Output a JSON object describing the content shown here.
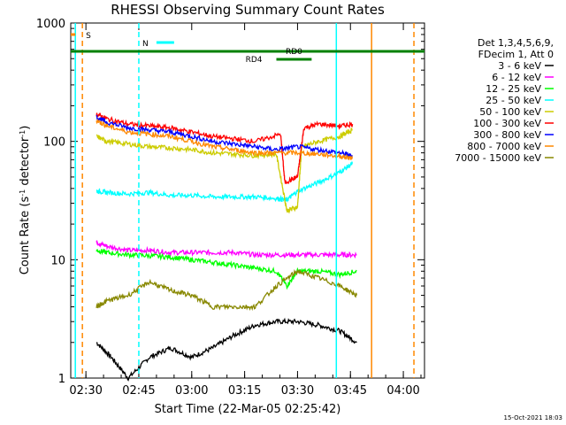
{
  "chart_data": {
    "type": "line",
    "title": "RHESSI Observing Summary Count Rates",
    "xlabel": "Start Time (22-Mar-05 02:25:42)",
    "ylabel_main": "Count Rate (s",
    "ylabel_sup1": "-1",
    "ylabel_mid": " detector",
    "ylabel_sup2": "-1",
    "ylabel_end": ")",
    "y_scale": "log",
    "ylim": [
      1,
      1000
    ],
    "xlim": [
      "02:25:42",
      "04:06"
    ],
    "x_ticks": [
      "02:30",
      "02:45",
      "03:00",
      "03:15",
      "03:30",
      "03:45",
      "04:00"
    ],
    "y_ticks": [
      "1",
      "10",
      "100",
      "1000"
    ],
    "legend": {
      "header": [
        "Det 1,3,4,5,6,9,",
        "FDecim 1, Att 0"
      ],
      "placement": "right",
      "entries": [
        {
          "label": "3 - 6 keV",
          "color": "#000000"
        },
        {
          "label": "6 - 12 keV",
          "color": "#ff00ff"
        },
        {
          "label": "12 - 25 keV",
          "color": "#00ff00"
        },
        {
          "label": "25 - 50 keV",
          "color": "#00ffff"
        },
        {
          "label": "50 - 100 keV",
          "color": "#cccc00"
        },
        {
          "label": "100 - 300 keV",
          "color": "#ff0000"
        },
        {
          "label": "300 - 800 keV",
          "color": "#0000ff"
        },
        {
          "label": "800 - 7000 keV",
          "color": "#ff8800"
        },
        {
          "label": "7000 - 15000 keV",
          "color": "#888800"
        }
      ]
    },
    "flags": [
      {
        "label": "S",
        "color": "#ff8800"
      },
      {
        "label": "N",
        "color": "#00ffff"
      },
      {
        "label": "RD0",
        "color": "#008000"
      },
      {
        "label": "RD4",
        "color": "#008000"
      }
    ],
    "series": [
      {
        "name": "3 - 6 keV",
        "color": "#000000",
        "points": [
          [
            2.55,
            2
          ],
          [
            2.62,
            1.5
          ],
          [
            2.7,
            1
          ],
          [
            2.8,
            1.5
          ],
          [
            2.9,
            1.8
          ],
          [
            3.0,
            1.5
          ],
          [
            3.1,
            1.8
          ],
          [
            3.2,
            2.3
          ],
          [
            3.3,
            2.8
          ],
          [
            3.4,
            3
          ],
          [
            3.5,
            3
          ],
          [
            3.6,
            2.8
          ],
          [
            3.7,
            2.5
          ],
          [
            3.78,
            2
          ]
        ]
      },
      {
        "name": "6 - 12 keV",
        "color": "#ff00ff",
        "points": [
          [
            2.55,
            14
          ],
          [
            2.6,
            13
          ],
          [
            2.7,
            12
          ],
          [
            2.8,
            12
          ],
          [
            2.9,
            11.5
          ],
          [
            3.0,
            11.5
          ],
          [
            3.1,
            11.5
          ],
          [
            3.2,
            11.5
          ],
          [
            3.3,
            11
          ],
          [
            3.4,
            11
          ],
          [
            3.5,
            11
          ],
          [
            3.6,
            11
          ],
          [
            3.7,
            11
          ],
          [
            3.78,
            11
          ]
        ]
      },
      {
        "name": "12 - 25 keV",
        "color": "#00ff00",
        "points": [
          [
            2.55,
            12
          ],
          [
            2.6,
            11.5
          ],
          [
            2.7,
            11
          ],
          [
            2.8,
            10.8
          ],
          [
            2.9,
            10.5
          ],
          [
            3.0,
            10
          ],
          [
            3.1,
            9.5
          ],
          [
            3.2,
            9
          ],
          [
            3.3,
            8.5
          ],
          [
            3.4,
            8
          ],
          [
            3.45,
            6
          ],
          [
            3.5,
            8
          ],
          [
            3.6,
            8
          ],
          [
            3.7,
            7.5
          ],
          [
            3.78,
            8
          ]
        ]
      },
      {
        "name": "25 - 50 keV",
        "color": "#00ffff",
        "points": [
          [
            2.55,
            38
          ],
          [
            2.6,
            37
          ],
          [
            2.7,
            36
          ],
          [
            2.8,
            37
          ],
          [
            2.9,
            35
          ],
          [
            3.0,
            35
          ],
          [
            3.1,
            34
          ],
          [
            3.2,
            34
          ],
          [
            3.3,
            34
          ],
          [
            3.4,
            33
          ],
          [
            3.45,
            32
          ],
          [
            3.5,
            38
          ],
          [
            3.6,
            45
          ],
          [
            3.7,
            55
          ],
          [
            3.76,
            65
          ]
        ]
      },
      {
        "name": "50 - 100 keV",
        "color": "#cccc00",
        "points": [
          [
            2.55,
            110
          ],
          [
            2.6,
            100
          ],
          [
            2.7,
            95
          ],
          [
            2.8,
            90
          ],
          [
            2.9,
            88
          ],
          [
            3.0,
            85
          ],
          [
            3.1,
            80
          ],
          [
            3.2,
            78
          ],
          [
            3.3,
            76
          ],
          [
            3.4,
            78
          ],
          [
            3.45,
            26
          ],
          [
            3.5,
            28
          ],
          [
            3.52,
            90
          ],
          [
            3.6,
            100
          ],
          [
            3.7,
            110
          ],
          [
            3.76,
            125
          ]
        ]
      },
      {
        "name": "100 - 300 keV",
        "color": "#ff0000",
        "points": [
          [
            2.55,
            170
          ],
          [
            2.6,
            155
          ],
          [
            2.7,
            140
          ],
          [
            2.8,
            135
          ],
          [
            2.9,
            130
          ],
          [
            3.0,
            120
          ],
          [
            3.1,
            110
          ],
          [
            3.2,
            105
          ],
          [
            3.3,
            100
          ],
          [
            3.42,
            115
          ],
          [
            3.44,
            45
          ],
          [
            3.5,
            50
          ],
          [
            3.53,
            130
          ],
          [
            3.6,
            140
          ],
          [
            3.7,
            135
          ],
          [
            3.76,
            140
          ]
        ]
      },
      {
        "name": "300 - 800 keV",
        "color": "#0000ff",
        "points": [
          [
            2.55,
            160
          ],
          [
            2.6,
            145
          ],
          [
            2.7,
            130
          ],
          [
            2.8,
            125
          ],
          [
            2.9,
            120
          ],
          [
            3.0,
            110
          ],
          [
            3.1,
            100
          ],
          [
            3.2,
            95
          ],
          [
            3.3,
            90
          ],
          [
            3.4,
            85
          ],
          [
            3.5,
            90
          ],
          [
            3.6,
            85
          ],
          [
            3.7,
            80
          ],
          [
            3.76,
            75
          ]
        ]
      },
      {
        "name": "800 - 7000 keV",
        "color": "#ff8800",
        "points": [
          [
            2.55,
            150
          ],
          [
            2.6,
            135
          ],
          [
            2.7,
            120
          ],
          [
            2.8,
            115
          ],
          [
            2.9,
            110
          ],
          [
            3.0,
            100
          ],
          [
            3.1,
            90
          ],
          [
            3.2,
            85
          ],
          [
            3.3,
            80
          ],
          [
            3.4,
            80
          ],
          [
            3.5,
            80
          ],
          [
            3.6,
            78
          ],
          [
            3.7,
            75
          ],
          [
            3.76,
            72
          ]
        ]
      },
      {
        "name": "7000 - 15000 keV",
        "color": "#888800",
        "points": [
          [
            2.55,
            4
          ],
          [
            2.6,
            4.5
          ],
          [
            2.7,
            5
          ],
          [
            2.8,
            6.5
          ],
          [
            2.9,
            5.5
          ],
          [
            3.0,
            5
          ],
          [
            3.1,
            4
          ],
          [
            3.2,
            4
          ],
          [
            3.3,
            4
          ],
          [
            3.4,
            6
          ],
          [
            3.5,
            8
          ],
          [
            3.6,
            7
          ],
          [
            3.7,
            6
          ],
          [
            3.78,
            5
          ]
        ]
      }
    ]
  },
  "footer": {
    "timestamp": "15-Oct-2021 18:03"
  }
}
